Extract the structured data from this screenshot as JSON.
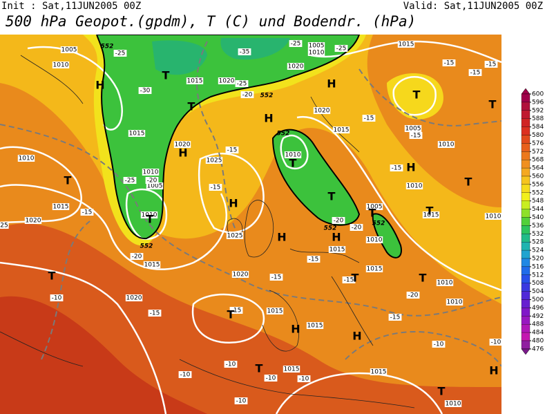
{
  "header": {
    "init": "Init : Sat,11JUN2005 00Z",
    "valid": "Valid: Sat,11JUN2005 00Z",
    "title": "500 hPa Geopot.(gpdm), T (C) und Bodendr. (hPa)"
  },
  "colorbar": {
    "ticks": [
      600,
      596,
      592,
      588,
      584,
      580,
      576,
      572,
      568,
      564,
      560,
      556,
      552,
      548,
      544,
      540,
      536,
      532,
      528,
      524,
      520,
      516,
      512,
      508,
      504,
      500,
      496,
      492,
      488,
      484,
      480,
      476
    ]
  },
  "map": {
    "pressure_labels": [
      "1005",
      "1010",
      "1005",
      "1010",
      "1015",
      "1020",
      "1015",
      "1020",
      "1015",
      "1020",
      "1025",
      "1010",
      "1020",
      "1015",
      "1010",
      "1010",
      "1005",
      "1015",
      "1020",
      "1010",
      "1025",
      "1020",
      "1015",
      "1020",
      "1015",
      "1015",
      "1015",
      "1005",
      "1010",
      "1015",
      "1015",
      "1010",
      "1005",
      "1010",
      "1010",
      "1010",
      "1010",
      "1015",
      "1015",
      "1010"
    ],
    "temperature_labels": [
      "-25",
      "-35",
      "-25",
      "-25",
      "-15",
      "-15",
      "-15",
      "-30",
      "-25",
      "-20",
      "-15",
      "-15",
      "-15",
      "-25",
      "-20",
      "-15",
      "-15",
      "-15",
      "-20",
      "-20",
      "-20",
      "-15",
      "-15",
      "-10",
      "-15",
      "-15",
      "-15",
      "-10",
      "-10",
      "-10",
      "-10",
      "-10",
      "-10",
      "-10",
      "-20",
      "-15",
      "25"
    ],
    "geopotential_labels": [
      "552",
      "552",
      "552",
      "552",
      "552",
      "552"
    ],
    "centers": [
      "H",
      "T",
      "T",
      "H",
      "H",
      "T",
      "T",
      "H",
      "T",
      "T",
      "H",
      "H",
      "T",
      "T",
      "H",
      "T",
      "T",
      "H",
      "T",
      "T",
      "T",
      "T",
      "T",
      "H",
      "H",
      "T",
      "T",
      "H"
    ]
  }
}
